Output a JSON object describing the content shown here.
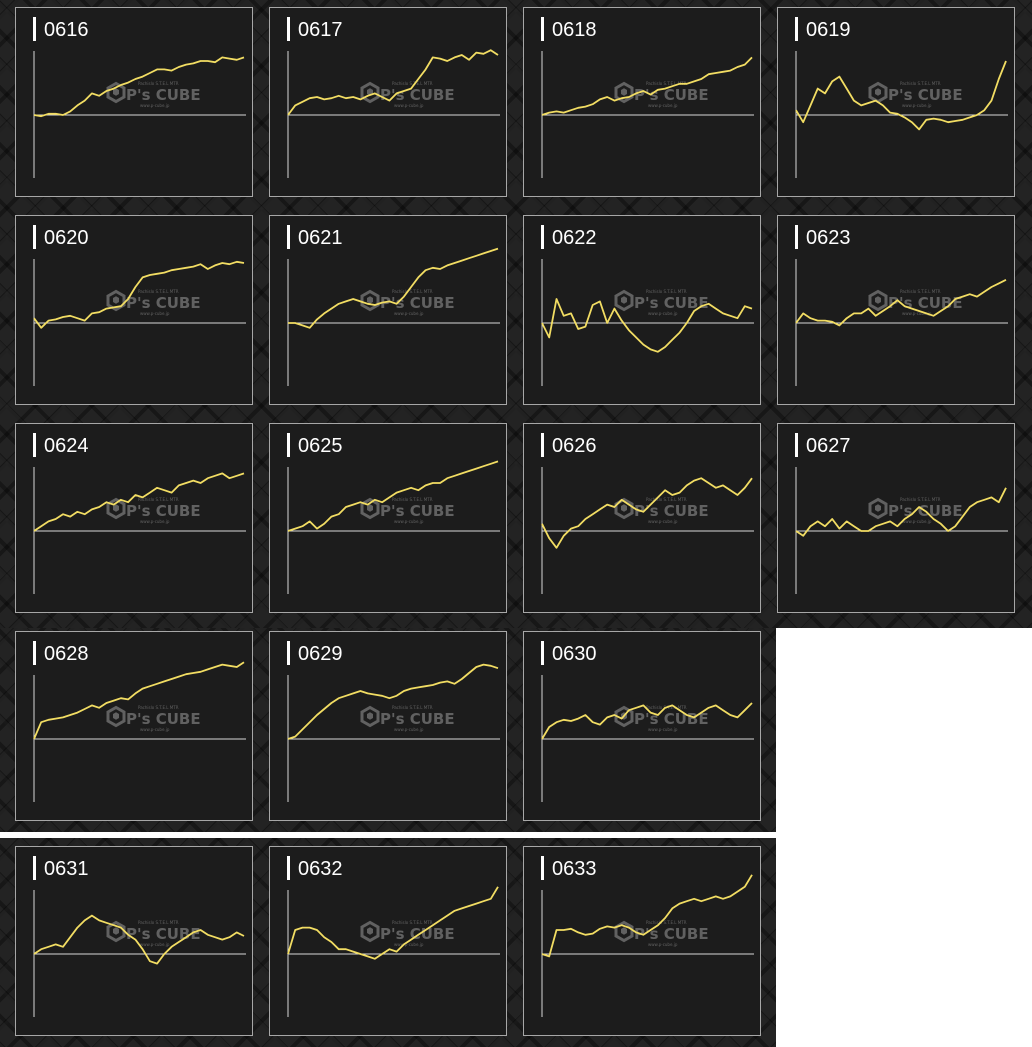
{
  "colors": {
    "line": "#f2dd63",
    "axis": "#d9d9d9",
    "panel": "#1c1c1c",
    "border": "#a7a7a7",
    "title": "#ffffff",
    "watermark": "#9a9a9a"
  },
  "watermark": {
    "brand": "P's CUBE",
    "top_text": "Pachislo S.T.E.L MTR",
    "bottom_text": "www.p-cube.jp"
  },
  "chart_data": [
    {
      "type": "line",
      "title": "0616",
      "y": [
        0,
        -1,
        1,
        1,
        0,
        3,
        8,
        12,
        18,
        16,
        20,
        22,
        25,
        27,
        30,
        32,
        35,
        38,
        38,
        37,
        40,
        42,
        43,
        45,
        45,
        44,
        48,
        47,
        46,
        48
      ]
    },
    {
      "type": "line",
      "title": "0617",
      "y": [
        0,
        8,
        11,
        14,
        15,
        13,
        14,
        16,
        14,
        15,
        13,
        16,
        18,
        15,
        12,
        18,
        20,
        22,
        30,
        38,
        48,
        47,
        45,
        48,
        50,
        46,
        52,
        51,
        54,
        50
      ]
    },
    {
      "type": "line",
      "title": "0618",
      "y": [
        0,
        2,
        3,
        2,
        4,
        6,
        7,
        9,
        13,
        15,
        12,
        14,
        15,
        18,
        20,
        17,
        21,
        22,
        24,
        26,
        26,
        28,
        30,
        34,
        35,
        36,
        37,
        40,
        42,
        48
      ]
    },
    {
      "type": "line",
      "title": "0619",
      "y": [
        4,
        -6,
        8,
        22,
        18,
        28,
        32,
        22,
        12,
        8,
        10,
        12,
        8,
        2,
        1,
        -2,
        -6,
        -12,
        -4,
        -3,
        -4,
        -6,
        -5,
        -4,
        -2,
        0,
        4,
        12,
        30,
        45
      ]
    },
    {
      "type": "line",
      "title": "0620",
      "y": [
        4,
        -4,
        2,
        3,
        5,
        6,
        4,
        2,
        8,
        9,
        12,
        13,
        14,
        20,
        30,
        38,
        40,
        41,
        42,
        44,
        45,
        46,
        47,
        49,
        45,
        48,
        50,
        49,
        51,
        50
      ]
    },
    {
      "type": "line",
      "title": "0621",
      "y": [
        0,
        0,
        -2,
        -4,
        3,
        8,
        12,
        16,
        18,
        20,
        18,
        16,
        15,
        17,
        18,
        16,
        22,
        30,
        38,
        44,
        46,
        45,
        48,
        50,
        52,
        54,
        56,
        58,
        60,
        62
      ]
    },
    {
      "type": "line",
      "title": "0622",
      "y": [
        0,
        -12,
        20,
        6,
        8,
        -5,
        -3,
        15,
        18,
        0,
        12,
        2,
        -6,
        -12,
        -18,
        -22,
        -24,
        -20,
        -14,
        -8,
        0,
        10,
        14,
        16,
        12,
        8,
        6,
        4,
        14,
        12
      ]
    },
    {
      "type": "line",
      "title": "0623",
      "y": [
        0,
        8,
        4,
        2,
        2,
        1,
        -2,
        4,
        8,
        8,
        12,
        6,
        10,
        14,
        19,
        14,
        12,
        10,
        8,
        6,
        10,
        14,
        20,
        22,
        24,
        22,
        26,
        30,
        33,
        36
      ]
    },
    {
      "type": "line",
      "title": "0624",
      "y": [
        0,
        4,
        8,
        10,
        14,
        12,
        16,
        14,
        18,
        20,
        24,
        22,
        26,
        24,
        30,
        28,
        32,
        36,
        34,
        32,
        38,
        40,
        42,
        40,
        44,
        46,
        48,
        44,
        46,
        48
      ]
    },
    {
      "type": "line",
      "title": "0625",
      "y": [
        0,
        2,
        4,
        8,
        2,
        6,
        12,
        14,
        20,
        22,
        24,
        22,
        26,
        24,
        28,
        32,
        34,
        36,
        34,
        38,
        40,
        40,
        44,
        46,
        48,
        50,
        52,
        54,
        56,
        58
      ]
    },
    {
      "type": "line",
      "title": "0626",
      "y": [
        6,
        -6,
        -14,
        -4,
        2,
        4,
        10,
        14,
        18,
        22,
        20,
        26,
        22,
        18,
        16,
        22,
        28,
        34,
        30,
        32,
        38,
        42,
        44,
        40,
        36,
        38,
        34,
        30,
        36,
        44
      ]
    },
    {
      "type": "line",
      "title": "0627",
      "y": [
        0,
        -4,
        4,
        8,
        4,
        10,
        2,
        8,
        4,
        0,
        0,
        4,
        6,
        8,
        4,
        10,
        14,
        20,
        16,
        10,
        6,
        0,
        4,
        12,
        20,
        24,
        26,
        28,
        24,
        36
      ]
    },
    {
      "type": "line",
      "title": "0628",
      "y": [
        0,
        14,
        16,
        17,
        18,
        20,
        22,
        25,
        28,
        26,
        30,
        32,
        34,
        33,
        38,
        42,
        44,
        46,
        48,
        50,
        52,
        54,
        55,
        56,
        58,
        60,
        62,
        61,
        60,
        64
      ]
    },
    {
      "type": "line",
      "title": "0629",
      "y": [
        0,
        2,
        8,
        14,
        20,
        25,
        30,
        34,
        36,
        38,
        40,
        38,
        37,
        36,
        34,
        36,
        40,
        42,
        43,
        44,
        45,
        47,
        48,
        46,
        50,
        55,
        60,
        62,
        61,
        59
      ]
    },
    {
      "type": "line",
      "title": "0630",
      "y": [
        0,
        10,
        14,
        16,
        15,
        17,
        20,
        14,
        12,
        18,
        20,
        17,
        24,
        26,
        28,
        22,
        20,
        26,
        28,
        24,
        20,
        18,
        22,
        26,
        28,
        24,
        20,
        18,
        24,
        30
      ]
    },
    {
      "type": "line",
      "title": "0631",
      "y": [
        0,
        4,
        6,
        8,
        6,
        14,
        22,
        28,
        32,
        28,
        26,
        24,
        22,
        16,
        12,
        4,
        -6,
        -8,
        0,
        6,
        10,
        14,
        18,
        20,
        16,
        14,
        12,
        14,
        18,
        15
      ]
    },
    {
      "type": "line",
      "title": "0632",
      "y": [
        0,
        20,
        22,
        22,
        20,
        14,
        10,
        4,
        4,
        2,
        0,
        -2,
        -4,
        0,
        4,
        2,
        8,
        12,
        16,
        20,
        24,
        28,
        32,
        36,
        38,
        40,
        42,
        44,
        46,
        56
      ]
    },
    {
      "type": "line",
      "title": "0633",
      "y": [
        0,
        -2,
        20,
        20,
        21,
        18,
        16,
        17,
        21,
        23,
        22,
        24,
        22,
        18,
        16,
        20,
        24,
        30,
        38,
        42,
        44,
        46,
        44,
        46,
        48,
        46,
        48,
        52,
        56,
        66
      ]
    }
  ]
}
